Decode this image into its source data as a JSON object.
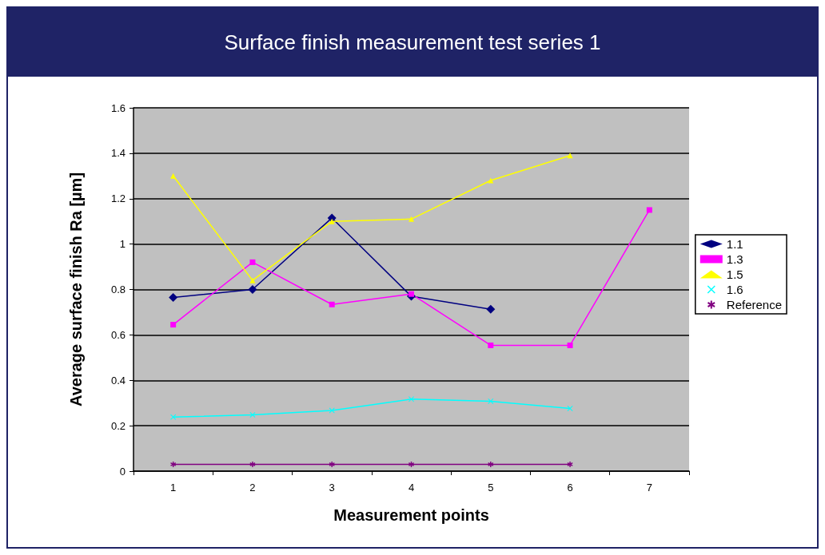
{
  "chart_data": {
    "type": "line",
    "title": "Surface finish measurement test series 1",
    "xlabel": "Measurement points",
    "ylabel": "Average surface finish Ra [µm]",
    "categories": [
      "1",
      "2",
      "3",
      "4",
      "5",
      "6",
      "7"
    ],
    "series": [
      {
        "name": "1.1",
        "color": "#000080",
        "marker": "diamond",
        "values": [
          0.765,
          0.8,
          1.115,
          0.77,
          0.713,
          null,
          null
        ]
      },
      {
        "name": "1.3",
        "color": "#ff00ff",
        "marker": "square",
        "values": [
          0.645,
          0.92,
          0.734,
          0.78,
          0.554,
          0.554,
          1.15
        ]
      },
      {
        "name": "1.5",
        "color": "#ffff00",
        "marker": "triangle",
        "values": [
          1.3,
          0.84,
          1.1,
          1.11,
          1.28,
          1.39,
          null
        ]
      },
      {
        "name": "1.6",
        "color": "#00ffff",
        "marker": "cross",
        "values": [
          0.238,
          0.248,
          0.267,
          0.317,
          0.308,
          0.276,
          null
        ]
      },
      {
        "name": "Reference",
        "color": "#800080",
        "marker": "star",
        "values": [
          0.03,
          0.03,
          0.03,
          0.03,
          0.03,
          0.03,
          null
        ]
      }
    ],
    "ylim": [
      0,
      1.6
    ],
    "yticks": [
      0,
      0.2,
      0.4,
      0.6,
      0.8,
      1,
      1.2,
      1.4,
      1.6
    ],
    "grid": "y",
    "legend": "right"
  }
}
